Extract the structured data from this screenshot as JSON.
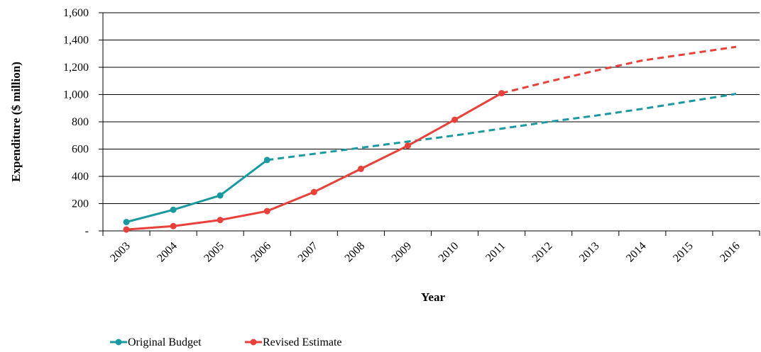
{
  "chart_data": {
    "type": "line",
    "xlabel": "Year",
    "ylabel": "Expenditure ($ million)",
    "ylim": [
      0,
      1600
    ],
    "y_ticks": [
      0,
      200,
      400,
      600,
      800,
      1000,
      1200,
      1400,
      1600
    ],
    "y_tick_labels": [
      "-",
      "200",
      "400",
      "600",
      "800",
      "1,000",
      "1,200",
      "1,400",
      "1,600"
    ],
    "categories": [
      "2003",
      "2004",
      "2005",
      "2006",
      "2007",
      "2008",
      "2009",
      "2010",
      "2011",
      "2012",
      "2013",
      "2014",
      "2015",
      "2016"
    ],
    "grid": "horizontal",
    "legend_position": "bottom-left",
    "series": [
      {
        "name": "Original Budget",
        "color": "#1a9aa0",
        "marker": "circle",
        "values": [
          65,
          155,
          260,
          520,
          null,
          null,
          null,
          null,
          null,
          null,
          null,
          null,
          null,
          null
        ],
        "projection": [
          null,
          null,
          null,
          520,
          565,
          610,
          655,
          700,
          750,
          800,
          845,
          895,
          950,
          1005
        ]
      },
      {
        "name": "Revised Estimate",
        "color": "#e8403a",
        "marker": "circle",
        "values": [
          10,
          35,
          80,
          145,
          285,
          455,
          625,
          815,
          1010,
          null,
          null,
          null,
          null,
          null
        ],
        "projection": [
          null,
          null,
          null,
          null,
          null,
          null,
          null,
          null,
          1010,
          1095,
          1175,
          1250,
          1300,
          1350
        ]
      }
    ]
  }
}
